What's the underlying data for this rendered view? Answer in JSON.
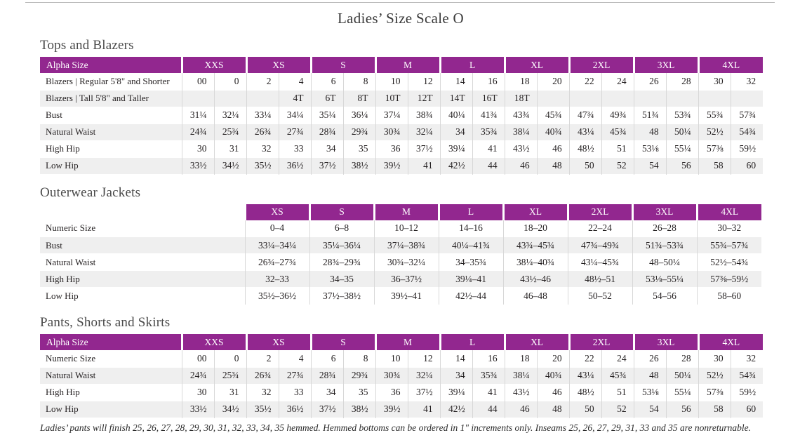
{
  "page": {
    "title": "Ladies’ Size Scale O",
    "footnote": "Ladies’ pants will finish 25, 26, 27, 28, 29, 30, 31, 32, 33, 34, 35 hemmed. Hemmed bottoms can be ordered in 1\" increments only. Inseams 25, 26, 27, 29, 31, 33 and 35 are nonreturnable."
  },
  "colors": {
    "header_bg": "#92278f",
    "header_text": "#ffffff",
    "row_alt": "#efefef",
    "rule": "#b9b9b9"
  },
  "tables": [
    {
      "id": "tops",
      "heading": "Tops and Blazers",
      "label_header": "Alpha Size",
      "groups": [
        "XXS",
        "XS",
        "S",
        "M",
        "L",
        "XL",
        "2XL",
        "3XL",
        "4XL"
      ],
      "rows": [
        {
          "label": "Blazers | Regular 5'8\" and Shorter",
          "values": [
            "00",
            "0",
            "2",
            "4",
            "6",
            "8",
            "10",
            "12",
            "14",
            "16",
            "18",
            "20",
            "22",
            "24",
            "26",
            "28",
            "30",
            "32"
          ]
        },
        {
          "label": "Blazers | Tall 5'8\" and Taller",
          "values": [
            "",
            "",
            "",
            "4T",
            "6T",
            "8T",
            "10T",
            "12T",
            "14T",
            "16T",
            "18T",
            "",
            "",
            "",
            "",
            "",
            "",
            ""
          ]
        },
        {
          "label": "Bust",
          "values": [
            "31¼",
            "32¼",
            "33¼",
            "34¼",
            "35¼",
            "36¼",
            "37¼",
            "38¾",
            "40¼",
            "41¾",
            "43¾",
            "45¾",
            "47¾",
            "49¾",
            "51¾",
            "53¾",
            "55¾",
            "57¾"
          ]
        },
        {
          "label": "Natural Waist",
          "values": [
            "24¾",
            "25¾",
            "26¾",
            "27¾",
            "28¾",
            "29¾",
            "30¾",
            "32¼",
            "34",
            "35¾",
            "38¼",
            "40¾",
            "43¼",
            "45¾",
            "48",
            "50¼",
            "52½",
            "54¾"
          ]
        },
        {
          "label": "High Hip",
          "values": [
            "30",
            "31",
            "32",
            "33",
            "34",
            "35",
            "36",
            "37½",
            "39¼",
            "41",
            "43½",
            "46",
            "48½",
            "51",
            "53⅛",
            "55¼",
            "57⅜",
            "59½"
          ]
        },
        {
          "label": "Low Hip",
          "values": [
            "33½",
            "34½",
            "35½",
            "36½",
            "37½",
            "38½",
            "39½",
            "41",
            "42½",
            "44",
            "46",
            "48",
            "50",
            "52",
            "54",
            "56",
            "58",
            "60"
          ]
        }
      ]
    },
    {
      "id": "outerwear",
      "heading": "Outerwear Jackets",
      "label_header": "",
      "groups": [
        "XS",
        "S",
        "M",
        "L",
        "XL",
        "2XL",
        "3XL",
        "4XL"
      ],
      "rows": [
        {
          "label": "Numeric Size",
          "values": [
            "0–4",
            "6–8",
            "10–12",
            "14–16",
            "18–20",
            "22–24",
            "26–28",
            "30–32"
          ]
        },
        {
          "label": "Bust",
          "values": [
            "33¼–34¼",
            "35¼–36¼",
            "37¼–38¾",
            "40¼–41¾",
            "43¾–45¾",
            "47¾–49¾",
            "51¾–53¾",
            "55¾–57¾"
          ]
        },
        {
          "label": "Natural Waist",
          "values": [
            "26¾–27¾",
            "28¾–29¾",
            "30¾–32¼",
            "34–35¾",
            "38¼–40¾",
            "43¼–45¾",
            "48–50¼",
            "52½–54¾"
          ]
        },
        {
          "label": "High Hip",
          "values": [
            "32–33",
            "34–35",
            "36–37½",
            "39¼–41",
            "43½–46",
            "48½–51",
            "53⅛–55¼",
            "57⅜–59½"
          ]
        },
        {
          "label": "Low Hip",
          "values": [
            "35½–36½",
            "37½–38½",
            "39½–41",
            "42½–44",
            "46–48",
            "50–52",
            "54–56",
            "58–60"
          ]
        }
      ]
    },
    {
      "id": "pants",
      "heading": "Pants, Shorts and Skirts",
      "label_header": "Alpha Size",
      "groups": [
        "XXS",
        "XS",
        "S",
        "M",
        "L",
        "XL",
        "2XL",
        "3XL",
        "4XL"
      ],
      "rows": [
        {
          "label": "Numeric Size",
          "values": [
            "00",
            "0",
            "2",
            "4",
            "6",
            "8",
            "10",
            "12",
            "14",
            "16",
            "18",
            "20",
            "22",
            "24",
            "26",
            "28",
            "30",
            "32"
          ]
        },
        {
          "label": "Natural Waist",
          "values": [
            "24¾",
            "25¾",
            "26¾",
            "27¾",
            "28¾",
            "29¾",
            "30¾",
            "32¼",
            "34",
            "35¾",
            "38¼",
            "40¾",
            "43¼",
            "45¾",
            "48",
            "50¼",
            "52½",
            "54¾"
          ]
        },
        {
          "label": "High Hip",
          "values": [
            "30",
            "31",
            "32",
            "33",
            "34",
            "35",
            "36",
            "37½",
            "39¼",
            "41",
            "43½",
            "46",
            "48½",
            "51",
            "53⅛",
            "55¼",
            "57⅜",
            "59½"
          ]
        },
        {
          "label": "Low Hip",
          "values": [
            "33½",
            "34½",
            "35½",
            "36½",
            "37½",
            "38½",
            "39½",
            "41",
            "42½",
            "44",
            "46",
            "48",
            "50",
            "52",
            "54",
            "56",
            "58",
            "60"
          ]
        }
      ]
    }
  ]
}
